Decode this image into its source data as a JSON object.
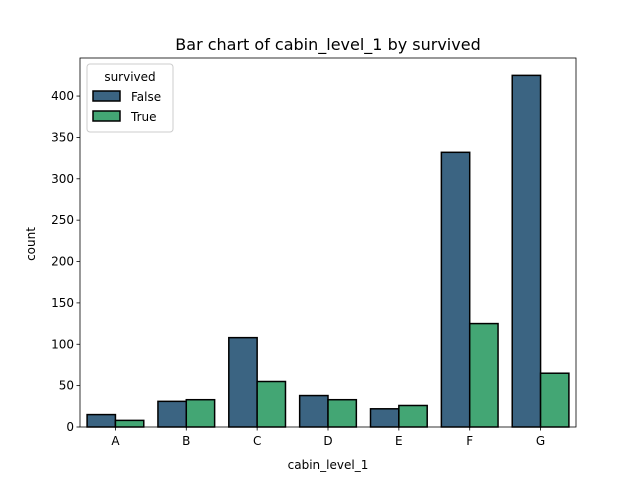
{
  "chart_data": {
    "type": "bar",
    "title": "Bar chart of cabin_level_1 by survived",
    "xlabel": "cabin_level_1",
    "ylabel": "count",
    "categories": [
      "A",
      "B",
      "C",
      "D",
      "E",
      "F",
      "G"
    ],
    "series": [
      {
        "name": "False",
        "color": "#3b6482",
        "values": [
          15,
          31,
          108,
          38,
          22,
          332,
          425
        ]
      },
      {
        "name": "True",
        "color": "#43a674",
        "values": [
          8,
          33,
          55,
          33,
          26,
          125,
          65
        ]
      }
    ],
    "ylim": [
      0,
      446
    ],
    "yticks": [
      0,
      50,
      100,
      150,
      200,
      250,
      300,
      350,
      400
    ],
    "grid": false,
    "legend": {
      "title": "survived",
      "placement": "top-left"
    },
    "bar_edge_color": "#000000"
  }
}
